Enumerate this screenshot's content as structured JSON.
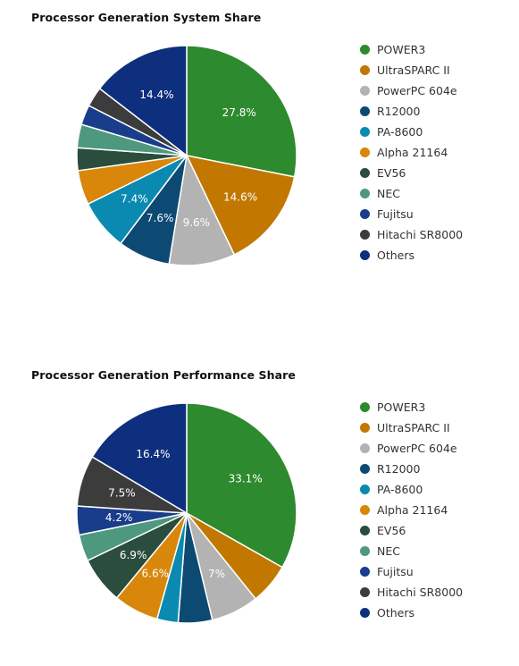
{
  "chart_data": [
    {
      "type": "pie",
      "title": "Processor Generation System Share",
      "categories": [
        "POWER3",
        "UltraSPARC II",
        "PowerPC 604e",
        "R12000",
        "PA-8600",
        "Alpha 21164",
        "EV56",
        "NEC",
        "Fujitsu",
        "Hitachi SR8000",
        "Others"
      ],
      "values": [
        27.8,
        14.6,
        9.6,
        7.6,
        7.4,
        5.0,
        3.3,
        3.4,
        2.9,
        2.9,
        14.4
      ],
      "labels": [
        "27.8%",
        "14.6%",
        "9.6%",
        "7.6%",
        "7.4%",
        "",
        "",
        "",
        "",
        "",
        "14.4%"
      ],
      "colors": [
        "#2e8a2e",
        "#c27800",
        "#b3b3b3",
        "#0d4a73",
        "#0a8ab0",
        "#d8870b",
        "#2a4d3e",
        "#4e9880",
        "#193d8a",
        "#3c3c3c",
        "#0e2f7d"
      ],
      "legend_position": "right"
    },
    {
      "type": "pie",
      "title": "Processor Generation Performance Share",
      "categories": [
        "POWER3",
        "UltraSPARC II",
        "PowerPC 604e",
        "R12000",
        "PA-8600",
        "Alpha 21164",
        "EV56",
        "NEC",
        "Fujitsu",
        "Hitachi SR8000",
        "Others"
      ],
      "values": [
        33.1,
        6.0,
        7.0,
        5.0,
        3.1,
        6.6,
        6.9,
        3.9,
        4.2,
        7.5,
        16.4
      ],
      "labels": [
        "33.1%",
        "",
        "7%",
        "",
        "",
        "6.6%",
        "6.9%",
        "",
        "4.2%",
        "7.5%",
        "16.4%"
      ],
      "colors": [
        "#2e8a2e",
        "#c27800",
        "#b3b3b3",
        "#0d4a73",
        "#0a8ab0",
        "#d8870b",
        "#2a4d3e",
        "#4e9880",
        "#193d8a",
        "#3c3c3c",
        "#0e2f7d"
      ],
      "legend_position": "right"
    }
  ]
}
